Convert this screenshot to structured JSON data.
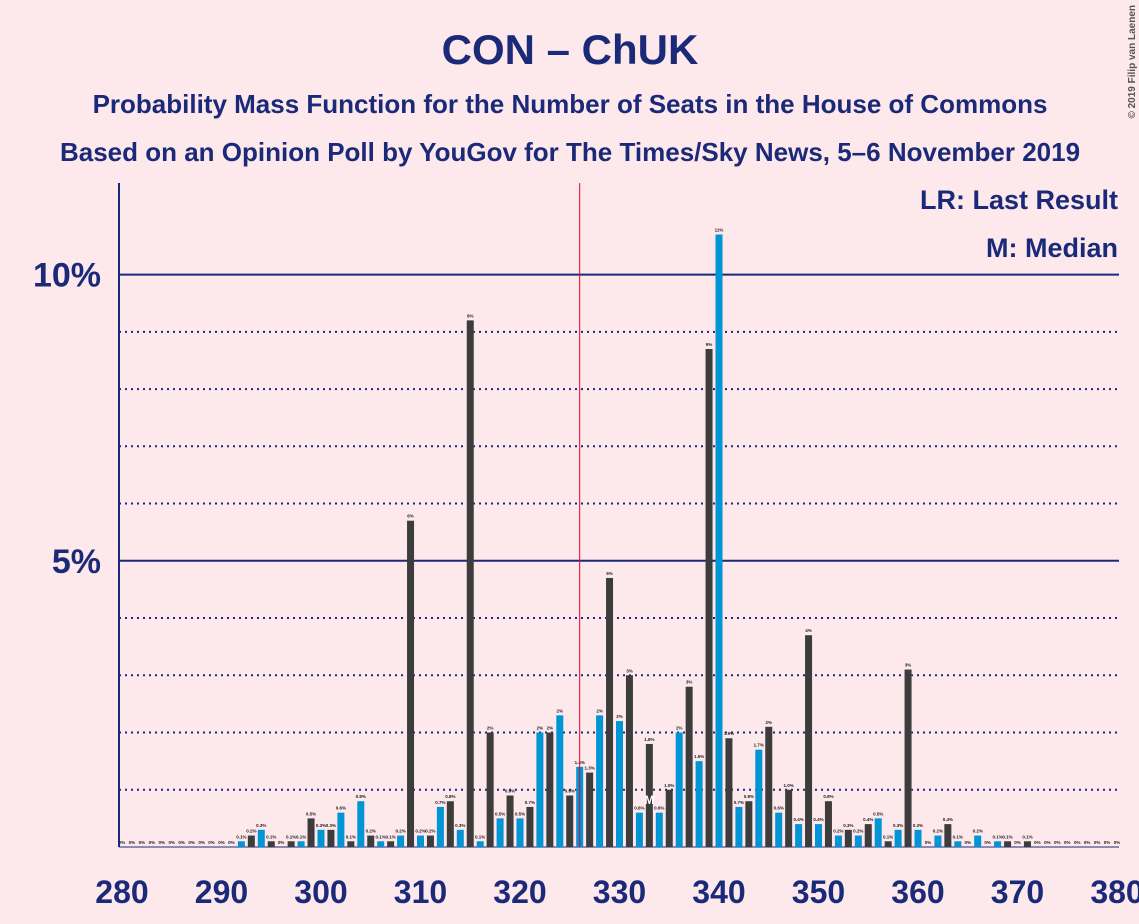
{
  "chart_data": {
    "type": "bar",
    "title": "CON – ChUK",
    "subtitle": "Probability Mass Function for the Number of Seats in the House of Commons",
    "subtitle2": "Based on an Opinion Poll by YouGov for The Times/Sky News, 5–6 November 2019",
    "copyright": "© 2019 Filip van Laenen",
    "legend": [
      "LR: Last Result",
      "M: Median"
    ],
    "median": 333,
    "median_label": "M",
    "last_result": 326,
    "colors": [
      "#0096d6",
      "#3c3c3c"
    ],
    "x": [
      280,
      281,
      282,
      283,
      284,
      285,
      286,
      287,
      288,
      289,
      290,
      291,
      292,
      293,
      294,
      295,
      296,
      297,
      298,
      299,
      300,
      301,
      302,
      303,
      304,
      305,
      306,
      307,
      308,
      309,
      310,
      311,
      312,
      313,
      314,
      315,
      316,
      317,
      318,
      319,
      320,
      321,
      322,
      323,
      324,
      325,
      326,
      327,
      328,
      329,
      330,
      331,
      332,
      333,
      334,
      335,
      336,
      337,
      338,
      339,
      340,
      341,
      342,
      343,
      344,
      345,
      346,
      347,
      348,
      349,
      350,
      351,
      352,
      353,
      354,
      355,
      356,
      357,
      358,
      359,
      360,
      361,
      362,
      363,
      364,
      365,
      366,
      367,
      368,
      369,
      370,
      371,
      372,
      373,
      374,
      375,
      376,
      377,
      378,
      379,
      380
    ],
    "values": [
      0,
      0,
      0,
      0,
      0,
      0,
      0,
      0,
      0,
      0,
      0,
      0,
      0.1,
      0.2,
      0.3,
      0.1,
      0,
      0.1,
      0.1,
      0.5,
      0.3,
      0.3,
      0.6,
      0.1,
      0.8,
      0.2,
      0.1,
      0.1,
      0.2,
      5.7,
      0.2,
      0.2,
      0.7,
      0.8,
      0.3,
      9.2,
      0.1,
      2.0,
      0.5,
      0.9,
      0.5,
      0.7,
      2.0,
      2.0,
      2.3,
      0.9,
      1.4,
      1.3,
      2.3,
      4.7,
      2.2,
      3.0,
      0.6,
      1.8,
      0.6,
      1.0,
      2.0,
      2.8,
      1.5,
      8.7,
      10.7,
      1.9,
      0.7,
      0.8,
      1.7,
      2.1,
      0.6,
      1.0,
      0.4,
      3.7,
      0.4,
      0.8,
      0.2,
      0.3,
      0.2,
      0.4,
      0.5,
      0.1,
      0.3,
      3.1,
      0.3,
      0,
      0.2,
      0.4,
      0.1,
      0,
      0.2,
      0,
      0.1,
      0.1,
      0,
      0.1,
      0,
      0,
      0,
      0,
      0,
      0,
      0,
      0,
      0
    ],
    "value_labels": [
      "0%",
      "0%",
      "0%",
      "0%",
      "0%",
      "0%",
      "0%",
      "0%",
      "0%",
      "0%",
      "0%",
      "0%",
      "0.1%",
      "0.2%",
      "0.3%",
      "0.1%",
      "0%",
      "0.1%",
      "0.1%",
      "0.5%",
      "0.3%",
      "0.3%",
      "0.6%",
      "0.1%",
      "0.8%",
      "0.2%",
      "0.1%",
      "0.1%",
      "0.2%",
      "6%",
      "0.2%",
      "0.2%",
      "0.7%",
      "0.8%",
      "0.3%",
      "9%",
      "0.1%",
      "2%",
      "0.5%",
      "0.9%",
      "0.5%",
      "0.7%",
      "2%",
      "2%",
      "2%",
      "0.9%",
      "1.4%",
      "1.3%",
      "2%",
      "5%",
      "2%",
      "3%",
      "0.6%",
      "1.8%",
      "0.6%",
      "1.0%",
      "2%",
      "3%",
      "1.5%",
      "9%",
      "11%",
      "1.9%",
      "0.7%",
      "0.8%",
      "1.7%",
      "2%",
      "0.6%",
      "1.0%",
      "0.4%",
      "4%",
      "0.4%",
      "0.8%",
      "0.2%",
      "0.3%",
      "0.2%",
      "0.4%",
      "0.5%",
      "0.1%",
      "0.3%",
      "3%",
      "0.3%",
      "0%",
      "0.2%",
      "0.4%",
      "0.1%",
      "0%",
      "0.2%",
      "0%",
      "0.1%",
      "0.1%",
      "0%",
      "0.1%",
      "0%",
      "0%",
      "0%",
      "0%",
      "0%",
      "0%",
      "0%",
      "0%",
      "0%"
    ],
    "xlim": [
      279.7,
      380.2
    ],
    "xticks": [
      280,
      290,
      300,
      310,
      320,
      330,
      340,
      350,
      360,
      370,
      380
    ],
    "ylim": [
      0,
      11.6
    ],
    "yticks": [
      {
        "value": 5,
        "label": "5%"
      },
      {
        "value": 10,
        "label": "10%"
      }
    ],
    "minor_grid": [
      1,
      2,
      3,
      4,
      6,
      7,
      8,
      9
    ]
  }
}
